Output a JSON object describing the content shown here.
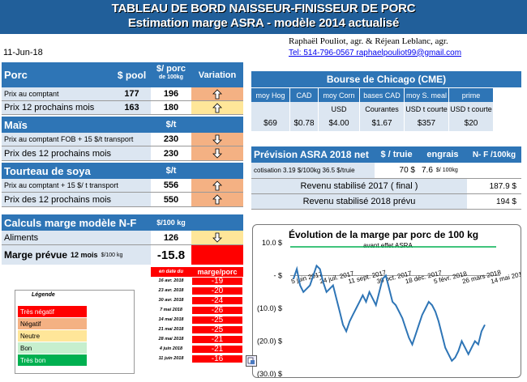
{
  "header": {
    "title_line1": "TABLEAU DE BORD NAISSEUR-FINISSEUR DE PORC",
    "title_line2": "Estimation marge ASRA - modèle 2014 actualisé",
    "authors": "Raphaël Pouliot, agr.   &   Réjean Leblanc, agr.",
    "contact": "Tel:     514-796-0567    raphaelpouliot99@gmail.com",
    "date": "11-Jun-18"
  },
  "porc": {
    "label": "Porc",
    "col_pool": "$ pool",
    "col_porc_line1": "$/ porc",
    "col_porc_line2": "de 100kg",
    "col_variation": "Variation",
    "rows": [
      {
        "label": "Prix au comptant",
        "pool": "177",
        "porc": "196"
      },
      {
        "label": "Prix 12 prochains mois",
        "pool": "163",
        "porc": "180"
      }
    ]
  },
  "mais": {
    "label": "Maïs",
    "unit": "$/t",
    "rows": [
      {
        "label": "Prix au comptant FOB + 15 $/t transport",
        "value": "230"
      },
      {
        "label": "Prix des 12 prochains mois",
        "value": "230"
      }
    ]
  },
  "soya": {
    "label": "Tourteau de soya",
    "unit": "$/t",
    "rows": [
      {
        "label": "Prix au comptant + 15 $/ t  transport",
        "value": "556"
      },
      {
        "label": "Prix des 12 prochains mois",
        "value": "550"
      }
    ]
  },
  "calculs": {
    "label": "Calculs marge  modèle N-F",
    "unit": "$/100 kg",
    "aliments_label": "Aliments",
    "aliments_value": "126",
    "marge_label": "Marge prévue",
    "marge_sub": "12 mois",
    "marge_unit": "$/100 kg",
    "marge_value": "-15.8"
  },
  "history": {
    "col_date": "en date du",
    "col_marge": "marge/porc",
    "rows": [
      {
        "date": "16 avr. 2018",
        "value": "-19"
      },
      {
        "date": "23 avr. 2018",
        "value": "-20"
      },
      {
        "date": "30 avr. 2018",
        "value": "-24"
      },
      {
        "date": "7 mai 2018",
        "value": "-26"
      },
      {
        "date": "14 mai 2018",
        "value": "-25"
      },
      {
        "date": "21 mai 2018",
        "value": "-25"
      },
      {
        "date": "28 mai 2018",
        "value": "-21"
      },
      {
        "date": "4 juin 2018",
        "value": "-21"
      },
      {
        "date": "11 juin 2018",
        "value": "-16"
      }
    ]
  },
  "legend": {
    "title": "Légende",
    "items": [
      {
        "label": "Très négatif",
        "color": "#ff0000",
        "text_color": "#ffffff"
      },
      {
        "label": "Négatif",
        "color": "#f4b183",
        "text_color": "#000000"
      },
      {
        "label": "Neutre",
        "color": "#ffe699",
        "text_color": "#000000"
      },
      {
        "label": "Bon",
        "color": "#c6efce",
        "text_color": "#000000"
      },
      {
        "label": "Très bon",
        "color": "#00b050",
        "text_color": "#ffffff"
      }
    ]
  },
  "cme": {
    "title": "Bourse de Chicago (CME)",
    "columns": [
      "moy Hog",
      "CAD",
      "moy Corn",
      "bases CAD",
      "moy S. meal",
      "prime"
    ],
    "units": [
      "",
      "",
      "USD",
      "Courantes",
      "USD t courte",
      "USD t courte"
    ],
    "values": [
      "$69",
      "$0.78",
      "$4.00",
      "$1.67",
      "$357",
      "$20"
    ]
  },
  "asra": {
    "title": "Prévision ASRA 2018 net",
    "col_truie": "$ / truie",
    "col_engrais": "engrais",
    "col_nf": "N- F /100kg",
    "cotisation_label": "cotisation 3.19 $/100kg  36.5 $/truie",
    "cotisation_truie": "70  $",
    "engrais_value": "7.6",
    "engrais_unit": "$/ 100kg",
    "revenu_2017_label": "Revenu stabilisé 2017 ( final )",
    "revenu_2017_value": "187.9 $",
    "revenu_2018_label": "Revenu stabilisé 2018 prévu",
    "revenu_2018_value": "194 $"
  },
  "chart_data": {
    "type": "line",
    "title": "Évolution de la marge par porc de 100 kg",
    "subtitle": "avant effet ASRA",
    "yticks": [
      "10.0 $",
      "- $",
      "(10.0) $",
      "(20.0) $",
      "(30.0) $"
    ],
    "xticks": [
      "5 juin 2017",
      "24 juil. 2017",
      "11 sept. 2017",
      "30 oct. 2017",
      "18 déc. 2017",
      "5 févr. 2018",
      "26 mars 2018",
      "14 mai 2018"
    ],
    "ylim": [
      -30,
      10
    ],
    "series": [
      {
        "name": "",
        "color": "#2e75b6",
        "values": [
          -1,
          2,
          -3,
          -5,
          -4,
          -3,
          0,
          3,
          2,
          -2,
          -5,
          -4,
          -3,
          -7,
          -11,
          -15,
          -17,
          -14,
          -12,
          -10,
          -8,
          -6,
          -8,
          -5,
          -7,
          -9,
          -5,
          -1,
          0,
          -4,
          -8,
          -9,
          -11,
          -13,
          -16,
          -19,
          -21,
          -18,
          -15,
          -12,
          -10,
          -8,
          -9,
          -11,
          -14,
          -18,
          -22,
          -24,
          -26,
          -25,
          -23,
          -20,
          -22,
          -24,
          -22,
          -20,
          -21,
          -17,
          -15
        ]
      }
    ],
    "colors": {
      "line": "#2e75b6",
      "reference": "#00b050"
    }
  },
  "colors": {
    "header_blue": "#2e75b6",
    "title_blue": "#215f9a",
    "light_blue": "#dce6f1",
    "very_negative": "#ff0000",
    "negative": "#f4b183",
    "neutral": "#ffe699"
  }
}
